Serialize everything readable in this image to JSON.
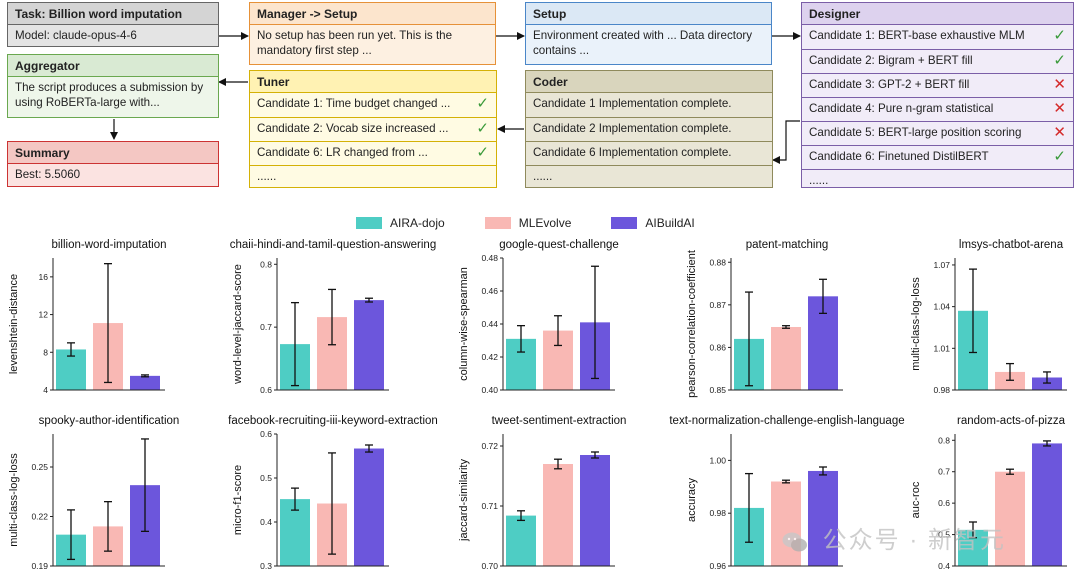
{
  "flow": {
    "task": {
      "title": "Task:   Billion word imputation",
      "body": "Model: claude-opus-4-6"
    },
    "aggregator": {
      "title": "Aggregator",
      "body": "The script produces a submission by using RoBERTa-large with..."
    },
    "summary": {
      "title": "Summary",
      "body": "Best: 5.5060"
    },
    "manager": {
      "title": "Manager -> Setup",
      "body": "No setup has been run yet. This is the mandatory first step ..."
    },
    "tuner": {
      "title": "Tuner",
      "items": [
        {
          "label": "Candidate 1: Time budget changed ...",
          "status": "ok"
        },
        {
          "label": "Candidate 2: Vocab size increased ...",
          "status": "ok"
        },
        {
          "label": "Candidate 6: LR changed from ...",
          "status": "ok"
        },
        {
          "label": "......",
          "status": ""
        }
      ]
    },
    "setup": {
      "title": "Setup",
      "body": "Environment created with ... Data directory contains ..."
    },
    "coder": {
      "title": "Coder",
      "items": [
        {
          "label": "Candidate 1 Implementation complete.",
          "status": ""
        },
        {
          "label": "Candidate 2 Implementation complete.",
          "status": ""
        },
        {
          "label": "Candidate 6 Implementation complete.",
          "status": ""
        },
        {
          "label": "......",
          "status": ""
        }
      ]
    },
    "designer": {
      "title": "Designer",
      "items": [
        {
          "label": "Candidate 1: BERT-base exhaustive MLM",
          "status": "ok"
        },
        {
          "label": "Candidate 2: Bigram + BERT fill",
          "status": "ok"
        },
        {
          "label": "Candidate 3: GPT-2 + BERT fill",
          "status": "bad"
        },
        {
          "label": "Candidate 4: Pure n-gram statistical",
          "status": "bad"
        },
        {
          "label": "Candidate 5: BERT-large position scoring",
          "status": "bad"
        },
        {
          "label": "Candidate 6: Finetuned DistilBERT",
          "status": "ok"
        },
        {
          "label": "......",
          "status": ""
        }
      ]
    }
  },
  "marks": {
    "ok": "✓",
    "bad": "✕"
  },
  "legend": [
    {
      "name": "AIRA-dojo",
      "color": "#4ecdc4"
    },
    {
      "name": "MLEvolve",
      "color": "#f9b8b4"
    },
    {
      "name": "AIBuildAI",
      "color": "#6c56dc"
    }
  ],
  "chart_data": [
    {
      "type": "bar",
      "title": "billion-word-imputation",
      "ylabel": "levenshtein-distance",
      "ylim": [
        4,
        18
      ],
      "yticks": [
        4,
        8,
        12,
        16
      ],
      "series": [
        "AIRA-dojo",
        "MLEvolve",
        "AIBuildAI"
      ],
      "values": [
        8.3,
        11.1,
        5.5
      ],
      "errors": [
        0.7,
        6.3,
        0.1
      ]
    },
    {
      "type": "bar",
      "title": "chaii-hindi-and-tamil-question-answering",
      "ylabel": "word-level-jaccard-score",
      "ylim": [
        0.6,
        0.81
      ],
      "yticks": [
        0.6,
        0.7,
        0.8
      ],
      "series": [
        "AIRA-dojo",
        "MLEvolve",
        "AIBuildAI"
      ],
      "values": [
        0.673,
        0.716,
        0.743
      ],
      "errors": [
        0.066,
        0.044,
        0.003
      ]
    },
    {
      "type": "bar",
      "title": "google-quest-challenge",
      "ylabel": "column-wise-spearman",
      "ylim": [
        0.4,
        0.48
      ],
      "yticks": [
        0.4,
        0.42,
        0.44,
        0.46,
        0.48
      ],
      "series": [
        "AIRA-dojo",
        "MLEvolve",
        "AIBuildAI"
      ],
      "values": [
        0.431,
        0.436,
        0.441
      ],
      "errors": [
        0.008,
        0.009,
        0.034
      ]
    },
    {
      "type": "bar",
      "title": "patent-matching",
      "ylabel": "pearson-correlation-coefficient",
      "ylim": [
        0.85,
        0.881
      ],
      "yticks": [
        0.85,
        0.86,
        0.87,
        0.88
      ],
      "series": [
        "AIRA-dojo",
        "MLEvolve",
        "AIBuildAI"
      ],
      "values": [
        0.862,
        0.8648,
        0.872
      ],
      "errors": [
        0.011,
        0.0003,
        0.004
      ]
    },
    {
      "type": "bar",
      "title": "lmsys-chatbot-arena",
      "ylabel": "multi-class-log-loss",
      "ylim": [
        0.98,
        1.075
      ],
      "yticks": [
        0.98,
        1.01,
        1.04,
        1.07
      ],
      "series": [
        "AIRA-dojo",
        "MLEvolve",
        "AIBuildAI"
      ],
      "values": [
        1.037,
        0.993,
        0.989
      ],
      "errors": [
        0.03,
        0.006,
        0.004
      ]
    },
    {
      "type": "bar",
      "title": "spooky-author-identification",
      "ylabel": "multi-class-log-loss",
      "ylim": [
        0.19,
        0.27
      ],
      "yticks": [
        0.19,
        0.22,
        0.25
      ],
      "series": [
        "AIRA-dojo",
        "MLEvolve",
        "AIBuildAI"
      ],
      "values": [
        0.209,
        0.214,
        0.239
      ],
      "errors": [
        0.015,
        0.015,
        0.028
      ]
    },
    {
      "type": "bar",
      "title": "facebook-recruiting-iii-keyword-extraction",
      "ylabel": "micro-f1-score",
      "ylim": [
        0.3,
        0.6
      ],
      "yticks": [
        0.3,
        0.4,
        0.5,
        0.6
      ],
      "series": [
        "AIRA-dojo",
        "MLEvolve",
        "AIBuildAI"
      ],
      "values": [
        0.452,
        0.442,
        0.567
      ],
      "errors": [
        0.025,
        0.115,
        0.008
      ]
    },
    {
      "type": "bar",
      "title": "tweet-sentiment-extraction",
      "ylabel": "jaccard-similarity",
      "ylim": [
        0.7,
        0.722
      ],
      "yticks": [
        0.7,
        0.71,
        0.72
      ],
      "series": [
        "AIRA-dojo",
        "MLEvolve",
        "AIBuildAI"
      ],
      "values": [
        0.7084,
        0.717,
        0.7185
      ],
      "errors": [
        0.0008,
        0.0008,
        0.0005
      ]
    },
    {
      "type": "bar",
      "title": "text-normalization-challenge-english-language",
      "ylabel": "accuracy",
      "ylim": [
        0.96,
        1.01
      ],
      "yticks": [
        0.96,
        0.98,
        1.0
      ],
      "series": [
        "AIRA-dojo",
        "MLEvolve",
        "AIBuildAI"
      ],
      "values": [
        0.982,
        0.992,
        0.996
      ],
      "errors": [
        0.013,
        0.0005,
        0.0015
      ]
    },
    {
      "type": "bar",
      "title": "random-acts-of-pizza",
      "ylabel": "auc-roc",
      "ylim": [
        0.4,
        0.82
      ],
      "yticks": [
        0.4,
        0.5,
        0.6,
        0.7,
        0.8
      ],
      "series": [
        "AIRA-dojo",
        "MLEvolve",
        "AIBuildAI"
      ],
      "values": [
        0.515,
        0.7,
        0.79
      ],
      "errors": [
        0.025,
        0.008,
        0.008
      ]
    }
  ],
  "watermark": "公众号 · 新智元"
}
